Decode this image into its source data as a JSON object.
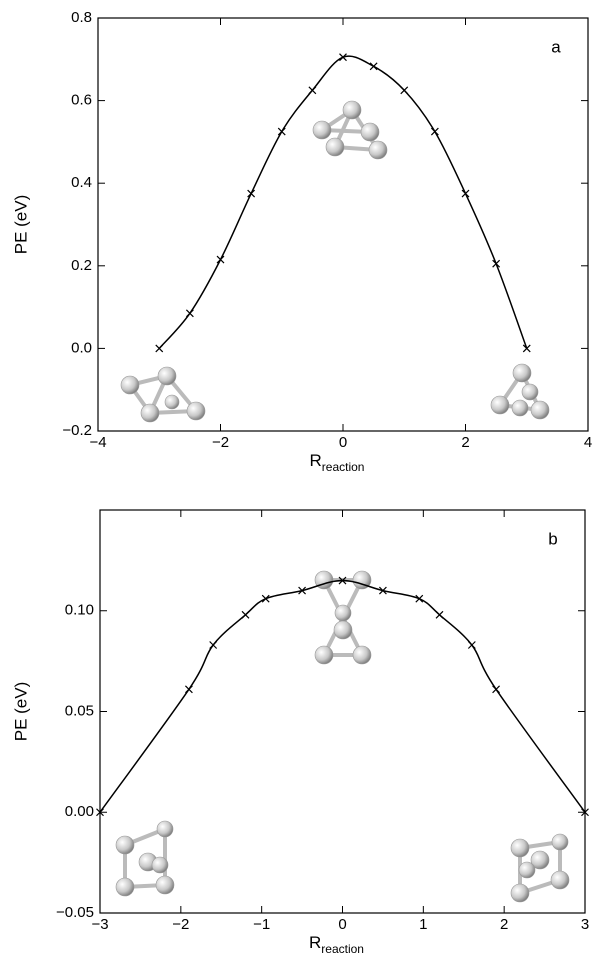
{
  "chart_data": [
    {
      "type": "line",
      "annotation": "a",
      "x_label": "R",
      "x_label_sub": "reaction",
      "y_label": "PE (eV)",
      "color": "#000000",
      "marker": "x",
      "x": [
        -3,
        -2.5,
        -2,
        -1.5,
        -1,
        -0.5,
        0,
        0.5,
        1,
        1.5,
        2,
        2.5,
        3
      ],
      "values": [
        0.0,
        0.085,
        0.215,
        0.375,
        0.525,
        0.625,
        0.705,
        0.683,
        0.625,
        0.525,
        0.375,
        0.205,
        0.0
      ],
      "xlim": [
        -4,
        4
      ],
      "ylim": [
        -0.2,
        0.8
      ],
      "xticks": [
        {
          "value": -4,
          "label": "−4"
        },
        {
          "value": -2,
          "label": "−2"
        },
        0,
        2,
        4
      ],
      "yticks": [
        {
          "value": -0.2,
          "label": "−0.2"
        },
        {
          "value": 0,
          "label": "0.0"
        },
        0.2,
        0.4,
        0.6,
        0.8
      ]
    },
    {
      "type": "line",
      "annotation": "b",
      "x_label": "R",
      "x_label_sub": "reaction",
      "y_label": "PE (eV)",
      "color": "#000000",
      "marker": "x",
      "x": [
        -3,
        -1.9,
        -1.6,
        -1.2,
        -0.95,
        -0.5,
        0,
        0.5,
        0.95,
        1.2,
        1.6,
        1.9,
        3
      ],
      "values": [
        0.0,
        0.061,
        0.083,
        0.098,
        0.106,
        0.11,
        0.115,
        0.11,
        0.106,
        0.098,
        0.083,
        0.061,
        0.0
      ],
      "xlim": [
        -3,
        3
      ],
      "ylim": [
        -0.05,
        0.15
      ],
      "xticks": [
        {
          "value": -3,
          "label": "−3"
        },
        {
          "value": -2,
          "label": "−2"
        },
        {
          "value": -1,
          "label": "−1"
        },
        0,
        1,
        2,
        3
      ],
      "yticks": [
        {
          "value": -0.05,
          "label": "−0.05"
        },
        {
          "value": 0,
          "label": "0.00"
        },
        0.05,
        {
          "value": 0.1,
          "label": "0.10"
        }
      ]
    }
  ]
}
